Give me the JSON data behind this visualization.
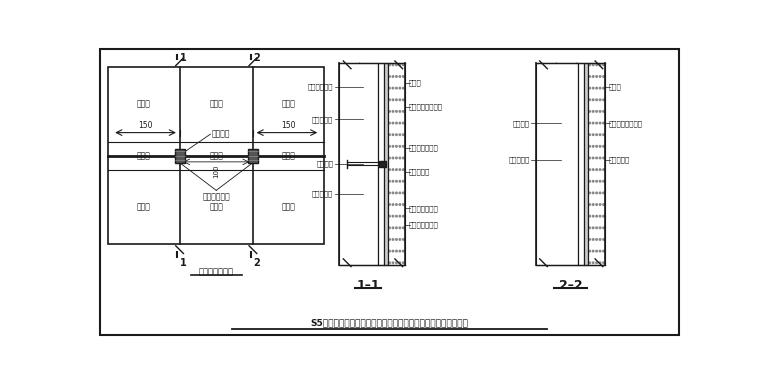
{
  "title": "S5工程精装修大堂墙面湿贴工艺硬化砖湿贴局部加强做法示意图",
  "subtitle_left": "墙砖立面示意图",
  "subtitle_11": "1–1",
  "subtitle_22": "2–2",
  "line_color": "#1a1a1a",
  "section1_labels_left": [
    "结构墙体基层",
    "墙体抹灰层",
    "射钉固定",
    "不锈钢挂件"
  ],
  "section1_labels_right": [
    "硬化砖",
    "硬化砖强力粘结剂",
    "云石胶快速固定",
    "填缝润缝缝",
    "硬化砖背面开槽",
    "采用云石胶固定"
  ],
  "section2_labels_left": [
    "墙体基层",
    "墙体抹灰层"
  ],
  "section2_labels_right": [
    "硬化砖",
    "硬化砖强力粘结剂",
    "填缝润缝缝"
  ],
  "tile_label": "硬化砖",
  "dim1": "150",
  "dim2": "150",
  "label_nail": "射钉固定",
  "label_steel": "不锈钢挂接件",
  "label_100": "100"
}
